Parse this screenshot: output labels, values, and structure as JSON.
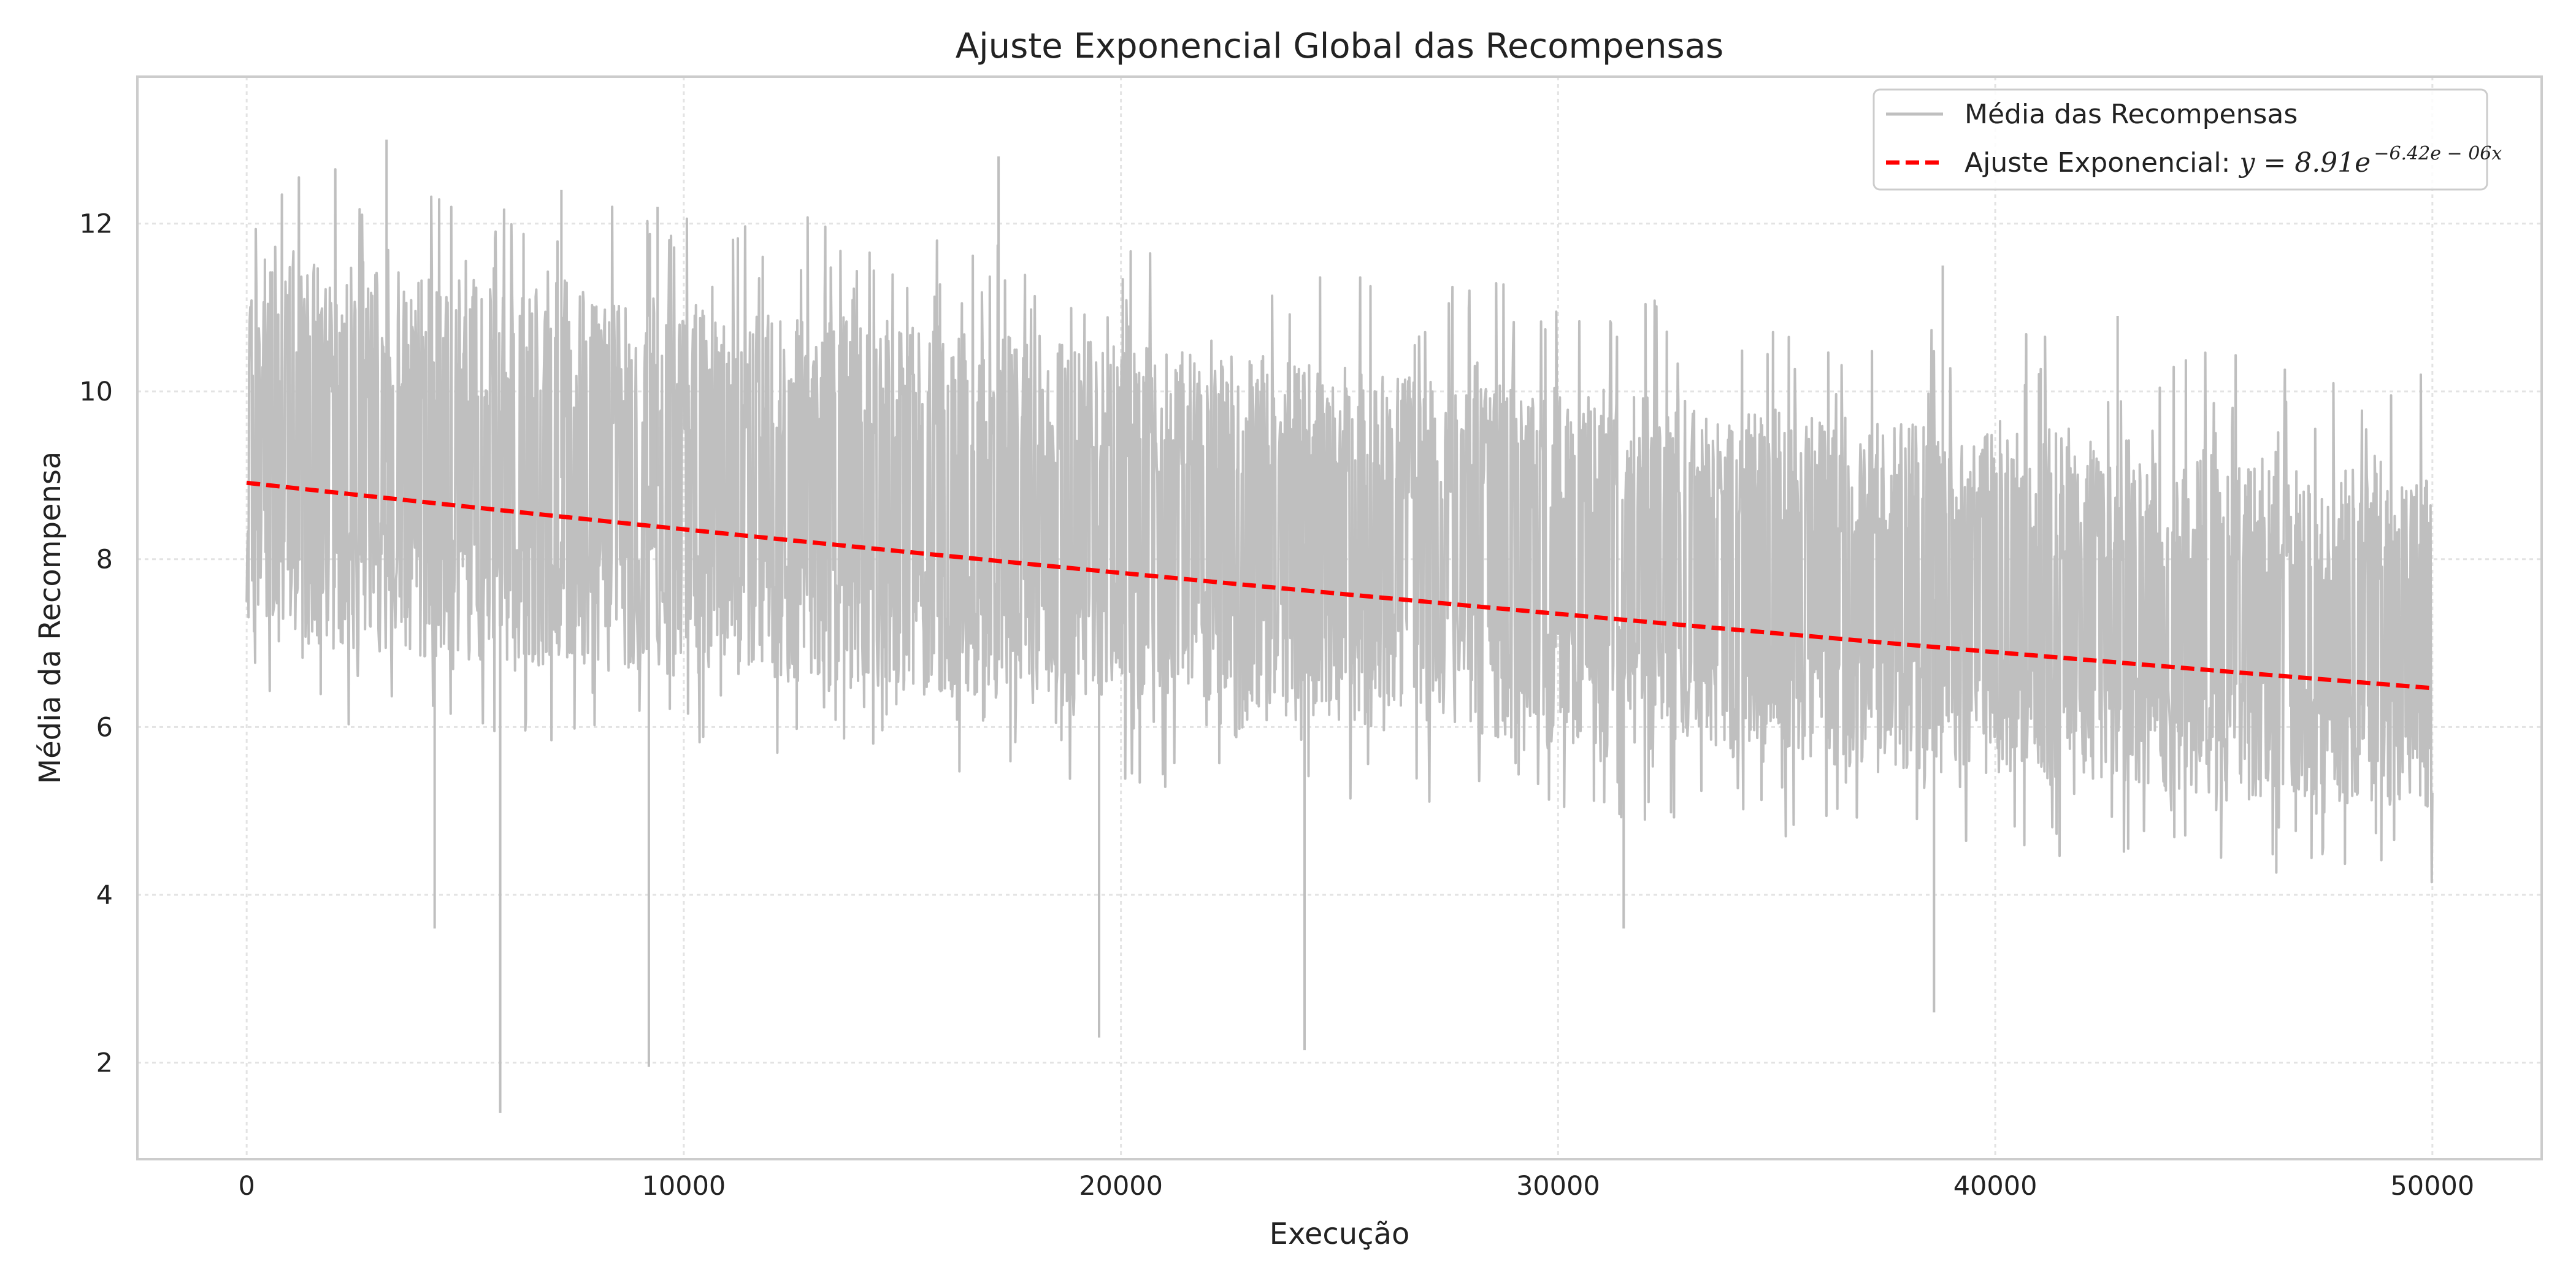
{
  "colors": {
    "raw_series": "#bfbfbf",
    "fit_line": "#ff0000",
    "grid": "#e3e3e3",
    "frame": "#cccccc",
    "text": "#222222"
  },
  "chart_data": {
    "type": "line",
    "title": "Ajuste Exponencial Global das Recompensas",
    "xlabel": "Execução",
    "ylabel": "Média da Recompensa",
    "xlim": [
      -2500,
      52500
    ],
    "ylim": [
      0.85,
      13.75
    ],
    "xticks": [
      0,
      10000,
      20000,
      30000,
      40000,
      50000
    ],
    "yticks": [
      2,
      4,
      6,
      8,
      10,
      12
    ],
    "grid": true,
    "legend_position": "top-right",
    "series": [
      {
        "name": "Média das Recompensas",
        "style": "solid",
        "n_points": 50000,
        "x_range": [
          0,
          50000
        ],
        "trend_start": 9.3,
        "trend_end": 7.0,
        "band_start": [
          7.0,
          11.6
        ],
        "band_end": [
          5.0,
          9.0
        ],
        "spikes_up": [
          [
            3200,
            13.0
          ],
          [
            17200,
            12.8
          ],
          [
            38800,
            11.5
          ],
          [
            42800,
            10.9
          ],
          [
            7200,
            12.4
          ],
          [
            9400,
            12.2
          ]
        ],
        "spikes_down": [
          [
            5800,
            1.4
          ],
          [
            9200,
            1.95
          ],
          [
            19500,
            2.3
          ],
          [
            24200,
            2.15
          ],
          [
            38600,
            2.6
          ],
          [
            4300,
            3.6
          ],
          [
            31500,
            3.6
          ]
        ]
      },
      {
        "name": "Ajuste Exponencial:",
        "style": "dashed",
        "equation": {
          "lhs": "y = 8.91e",
          "exponent": "−6.42e − 06x",
          "a": 8.91,
          "b": -6.42e-06
        },
        "x": [
          0,
          50000
        ],
        "y": [
          8.91,
          6.47
        ]
      }
    ]
  }
}
